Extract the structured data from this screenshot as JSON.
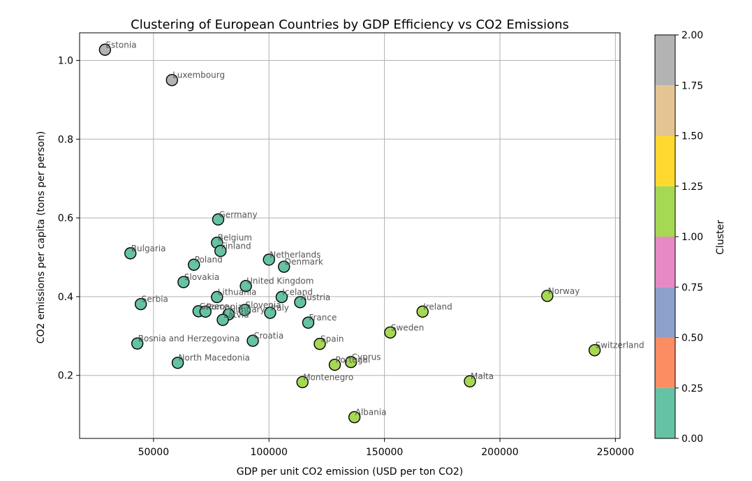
{
  "chart_data": {
    "type": "scatter",
    "title": "Clustering of European Countries by GDP Efficiency vs CO2 Emissions",
    "xlabel": "GDP per unit CO2 emission (USD per ton CO2)",
    "ylabel": "CO2 emissions per capita (tons per person)",
    "xlim": [
      18000,
      252000
    ],
    "ylim": [
      0.04,
      1.07
    ],
    "xticks": [
      50000,
      100000,
      150000,
      200000,
      250000
    ],
    "xtick_labels": [
      "50000",
      "100000",
      "150000",
      "200000",
      "250000"
    ],
    "yticks": [
      0.2,
      0.4,
      0.6,
      0.8,
      1.0
    ],
    "ytick_labels": [
      "0.2",
      "0.4",
      "0.6",
      "0.8",
      "1.0"
    ],
    "grid": true,
    "colorbar": {
      "label": "Cluster",
      "min": 0.0,
      "max": 2.0,
      "ticks": [
        "0.00",
        "0.25",
        "0.50",
        "0.75",
        "1.00",
        "1.25",
        "1.50",
        "1.75",
        "2.00"
      ],
      "colors": [
        "#66c2a5",
        "#fc8d62",
        "#8da0cb",
        "#e78ac3",
        "#a6d854",
        "#ffd92f",
        "#e5c494",
        "#b3b3b3"
      ]
    },
    "cluster_colors": {
      "0": "#66c2a5",
      "1": "#a6d854",
      "2": "#b3b3b3"
    },
    "points": [
      {
        "label": "Estonia",
        "x": 29000,
        "y": 1.027,
        "cluster": 2
      },
      {
        "label": "Luxembourg",
        "x": 58000,
        "y": 0.95,
        "cluster": 2
      },
      {
        "label": "Germany",
        "x": 78000,
        "y": 0.596,
        "cluster": 0
      },
      {
        "label": "Belgium",
        "x": 77500,
        "y": 0.537,
        "cluster": 0
      },
      {
        "label": "Finland",
        "x": 79000,
        "y": 0.516,
        "cluster": 0
      },
      {
        "label": "Bulgaria",
        "x": 40000,
        "y": 0.51,
        "cluster": 0
      },
      {
        "label": "Poland",
        "x": 67500,
        "y": 0.481,
        "cluster": 0
      },
      {
        "label": "Netherlands",
        "x": 100000,
        "y": 0.494,
        "cluster": 0
      },
      {
        "label": "Denmark",
        "x": 106500,
        "y": 0.476,
        "cluster": 0
      },
      {
        "label": "Slovakia",
        "x": 63000,
        "y": 0.437,
        "cluster": 0
      },
      {
        "label": "United Kingdom",
        "x": 90000,
        "y": 0.427,
        "cluster": 0
      },
      {
        "label": "Lithuania",
        "x": 77500,
        "y": 0.399,
        "cluster": 0
      },
      {
        "label": "Iceland",
        "x": 105500,
        "y": 0.399,
        "cluster": 0
      },
      {
        "label": "Austria",
        "x": 113500,
        "y": 0.386,
        "cluster": 0
      },
      {
        "label": "Serbia",
        "x": 44500,
        "y": 0.381,
        "cluster": 0
      },
      {
        "label": "Greece",
        "x": 69500,
        "y": 0.363,
        "cluster": 0
      },
      {
        "label": "Romania",
        "x": 72500,
        "y": 0.362,
        "cluster": 0
      },
      {
        "label": "Hungary",
        "x": 82500,
        "y": 0.355,
        "cluster": 0
      },
      {
        "label": "Slovenia",
        "x": 89500,
        "y": 0.366,
        "cluster": 0
      },
      {
        "label": "Italy",
        "x": 100500,
        "y": 0.359,
        "cluster": 0
      },
      {
        "label": "Latvia",
        "x": 80000,
        "y": 0.341,
        "cluster": 0
      },
      {
        "label": "France",
        "x": 117000,
        "y": 0.334,
        "cluster": 0
      },
      {
        "label": "Bosnia and Herzegovina",
        "x": 43000,
        "y": 0.281,
        "cluster": 0
      },
      {
        "label": "Croatia",
        "x": 93000,
        "y": 0.288,
        "cluster": 0
      },
      {
        "label": "North Macedonia",
        "x": 60500,
        "y": 0.232,
        "cluster": 0
      },
      {
        "label": "Norway",
        "x": 220500,
        "y": 0.402,
        "cluster": 1
      },
      {
        "label": "Ireland",
        "x": 166500,
        "y": 0.362,
        "cluster": 1
      },
      {
        "label": "Sweden",
        "x": 152500,
        "y": 0.309,
        "cluster": 1
      },
      {
        "label": "Switzerland",
        "x": 241000,
        "y": 0.264,
        "cluster": 1
      },
      {
        "label": "Spain",
        "x": 122000,
        "y": 0.28,
        "cluster": 1
      },
      {
        "label": "Cyprus",
        "x": 135500,
        "y": 0.234,
        "cluster": 1
      },
      {
        "label": "Portugal",
        "x": 128500,
        "y": 0.227,
        "cluster": 1
      },
      {
        "label": "Montenegro",
        "x": 114500,
        "y": 0.183,
        "cluster": 1
      },
      {
        "label": "Malta",
        "x": 187000,
        "y": 0.185,
        "cluster": 1
      },
      {
        "label": "Albania",
        "x": 137000,
        "y": 0.094,
        "cluster": 1
      }
    ]
  }
}
